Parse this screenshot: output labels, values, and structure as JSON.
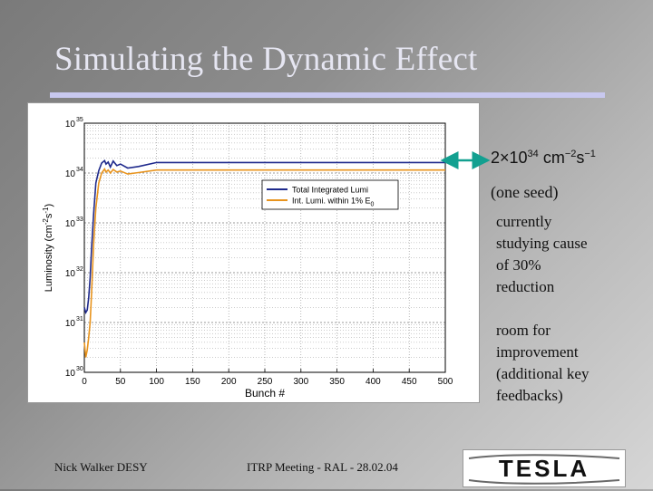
{
  "slide": {
    "title": "Simulating the Dynamic Effect",
    "footer_left": "Nick Walker DESY",
    "footer_center": "ITRP Meeting - RAL - 28.02.04",
    "logo_text": "TESLA"
  },
  "annotations": {
    "lumi_mantissa": "2×10",
    "lumi_exp": "34",
    "lumi_unit": "cm",
    "lumi_unit_exp": "−2",
    "lumi_time": "s",
    "lumi_time_exp": "−1",
    "seed": "(one seed)",
    "note1_lines": [
      "currently",
      "studying cause",
      "of 30%",
      "reduction"
    ],
    "note2_lines": [
      "room for",
      "improvement",
      "(additional key",
      "feedbacks)"
    ]
  },
  "colors": {
    "total": "#1f2a8c",
    "within1pct": "#e8941e",
    "arrow": "#12a090",
    "title_rule": "#c8c8ef"
  },
  "chart_data": {
    "type": "line",
    "xlabel": "Bunch #",
    "ylabel": "Luminosity (cm",
    "ylabel_sup1": "-2",
    "ylabel_mid": "s",
    "ylabel_sup2": "-1",
    "ylabel_end": ")",
    "xlim": [
      0,
      500
    ],
    "ylim_exp": [
      30,
      35
    ],
    "xticks": [
      0,
      50,
      100,
      150,
      200,
      250,
      300,
      350,
      400,
      450,
      500
    ],
    "yticks": [
      {
        "base": "10",
        "exp": "30"
      },
      {
        "base": "10",
        "exp": "31"
      },
      {
        "base": "10",
        "exp": "32"
      },
      {
        "base": "10",
        "exp": "33"
      },
      {
        "base": "10",
        "exp": "34"
      },
      {
        "base": "10",
        "exp": "35"
      }
    ],
    "legend": {
      "position": "center-right",
      "entries": [
        {
          "label": "Total Integrated Lumi",
          "series": "total"
        },
        {
          "label": "Int. Lumi. within 1% E",
          "sub": "0",
          "series": "within1pct"
        }
      ]
    },
    "series": [
      {
        "name": "total",
        "points": [
          [
            0,
            31.3
          ],
          [
            2,
            31.2
          ],
          [
            4,
            31.25
          ],
          [
            6,
            31.5
          ],
          [
            8,
            31.9
          ],
          [
            10,
            32.5
          ],
          [
            13,
            33.2
          ],
          [
            16,
            33.8
          ],
          [
            20,
            34.05
          ],
          [
            24,
            34.2
          ],
          [
            28,
            34.25
          ],
          [
            30,
            34.18
          ],
          [
            33,
            34.22
          ],
          [
            36,
            34.12
          ],
          [
            40,
            34.24
          ],
          [
            45,
            34.15
          ],
          [
            50,
            34.18
          ],
          [
            60,
            34.1
          ],
          [
            75,
            34.13
          ],
          [
            100,
            34.21
          ],
          [
            150,
            34.21
          ],
          [
            500,
            34.21
          ]
        ]
      },
      {
        "name": "within1pct",
        "points": [
          [
            0,
            30.6
          ],
          [
            2,
            30.3
          ],
          [
            4,
            30.45
          ],
          [
            6,
            30.7
          ],
          [
            8,
            31.0
          ],
          [
            10,
            31.6
          ],
          [
            13,
            32.6
          ],
          [
            16,
            33.3
          ],
          [
            20,
            33.8
          ],
          [
            24,
            34.0
          ],
          [
            28,
            34.08
          ],
          [
            30,
            34.02
          ],
          [
            33,
            34.06
          ],
          [
            36,
            34.0
          ],
          [
            40,
            34.07
          ],
          [
            45,
            34.02
          ],
          [
            50,
            34.04
          ],
          [
            60,
            33.98
          ],
          [
            75,
            34.01
          ],
          [
            100,
            34.06
          ],
          [
            150,
            34.06
          ],
          [
            500,
            34.06
          ]
        ]
      }
    ]
  }
}
